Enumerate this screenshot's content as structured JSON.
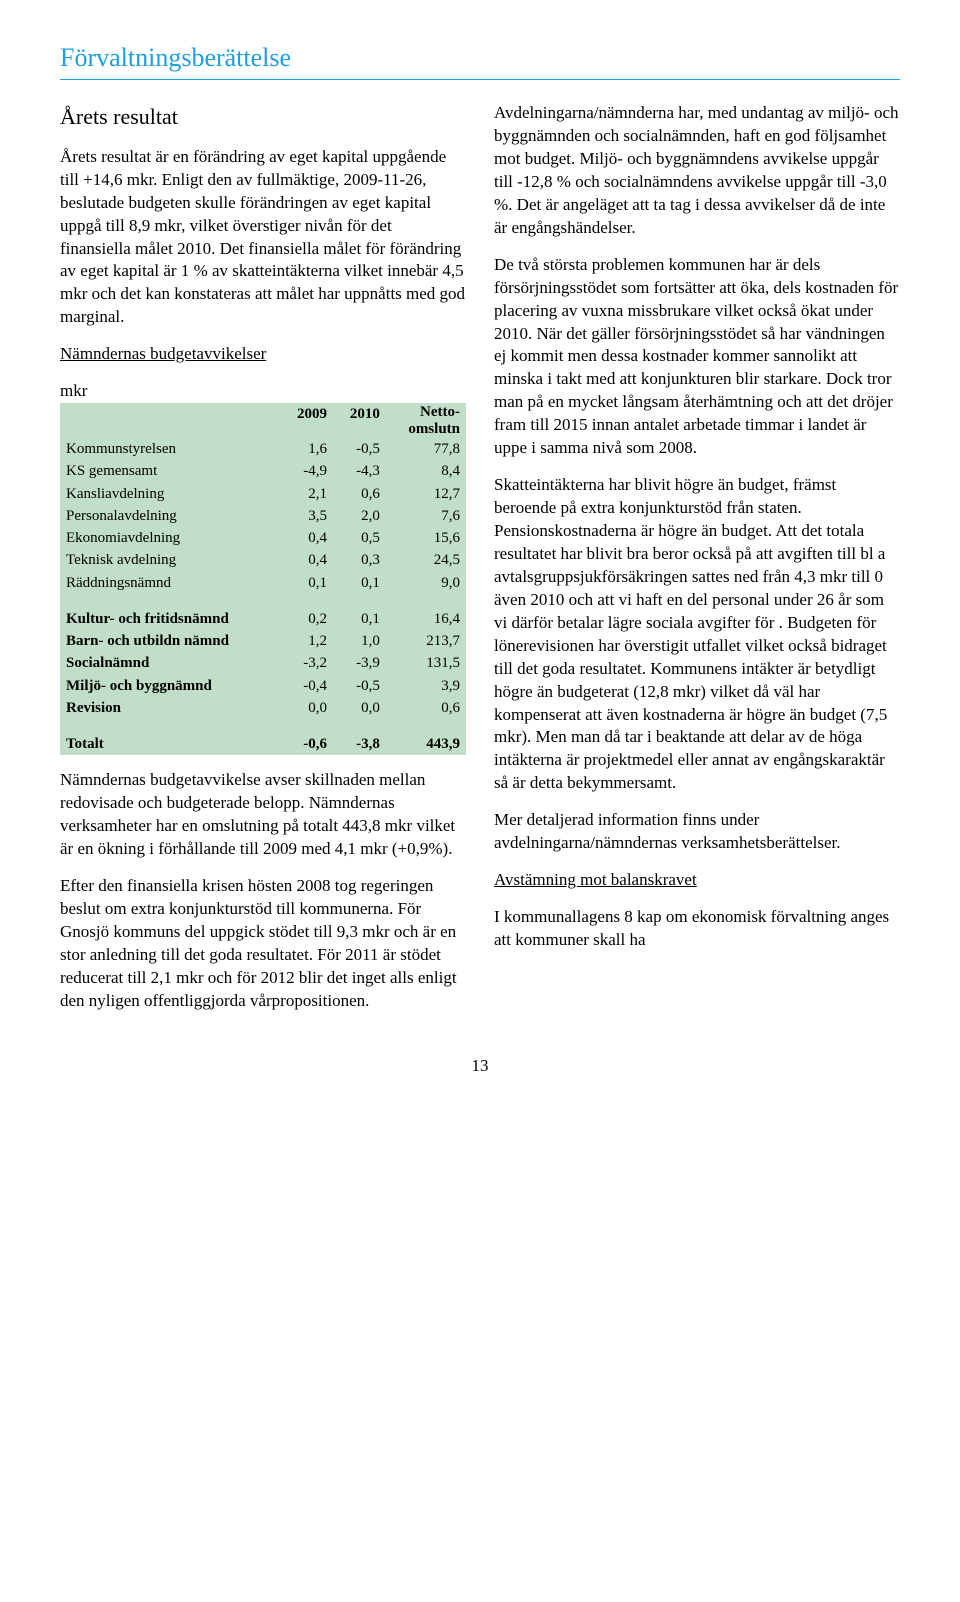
{
  "title": "Förvaltningsberättelse",
  "left": {
    "heading": "Årets resultat",
    "p1": "Årets resultat är en förändring av eget kapital uppgående till +14,6 mkr. Enligt den av fullmäktige, 2009-11-26, beslutade budgeten skulle förändringen av eget kapital uppgå till 8,9 mkr, vilket överstiger nivån för det finansiella målet 2010. Det finansiella målet för förändring av eget kapital är 1 % av skatteintäkterna vilket innebär 4,5 mkr och det kan konstateras att målet har uppnåtts med god marginal.",
    "subheading": "Nämndernas budgetavvikelser",
    "mkr": "mkr",
    "p2": "Nämndernas budgetavvikelse avser skillnaden mellan redovisade och budgeterade belopp. Nämndernas verksamheter har en omslutning på totalt 443,8 mkr vilket är en ökning i förhållande till 2009 med 4,1 mkr (+0,9%).",
    "p3": "Efter den finansiella krisen hösten 2008 tog regeringen beslut om extra konjunkturstöd till kommunerna. För Gnosjö kommuns del uppgick stödet till 9,3 mkr och är en stor anledning till det goda resultatet. För 2011 är stödet reducerat till 2,1 mkr och för 2012 blir det inget alls enligt den nyligen offentliggjorda vårpropositionen."
  },
  "table": {
    "headers": {
      "c0": "",
      "c1": "2009",
      "c2": "2010",
      "c3a": "Netto-",
      "c3b": "omslutn"
    },
    "rows": [
      {
        "label": "Kommunstyrelsen",
        "v1": "1,6",
        "v2": "-0,5",
        "v3": "77,8"
      },
      {
        "label": "KS gemensamt",
        "v1": "-4,9",
        "v2": "-4,3",
        "v3": "8,4"
      },
      {
        "label": "Kansliavdelning",
        "v1": "2,1",
        "v2": "0,6",
        "v3": "12,7"
      },
      {
        "label": "Personalavdelning",
        "v1": "3,5",
        "v2": "2,0",
        "v3": "7,6"
      },
      {
        "label": "Ekonomiavdelning",
        "v1": "0,4",
        "v2": "0,5",
        "v3": "15,6"
      },
      {
        "label": "Teknisk avdelning",
        "v1": "0,4",
        "v2": "0,3",
        "v3": "24,5"
      },
      {
        "label": "Räddningsnämnd",
        "v1": "0,1",
        "v2": "0,1",
        "v3": "9,0"
      }
    ],
    "rows2": [
      {
        "label": "Kultur- och fritidsnämnd",
        "v1": "0,2",
        "v2": "0,1",
        "v3": "16,4"
      },
      {
        "label": "Barn- och utbildn nämnd",
        "v1": "1,2",
        "v2": "1,0",
        "v3": "213,7"
      },
      {
        "label": "Socialnämnd",
        "v1": "-3,2",
        "v2": "-3,9",
        "v3": "131,5"
      },
      {
        "label": "Miljö- och byggnämnd",
        "v1": "-0,4",
        "v2": "-0,5",
        "v3": "3,9"
      },
      {
        "label": "Revision",
        "v1": "0,0",
        "v2": "0,0",
        "v3": "0,6"
      }
    ],
    "total": {
      "label": "Totalt",
      "v1": "-0,6",
      "v2": "-3,8",
      "v3": "443,9"
    },
    "styling": {
      "background": "#c1dec8",
      "fontsize": 15,
      "col_align": [
        "left",
        "right",
        "right",
        "right"
      ]
    }
  },
  "right": {
    "p1": "Avdelningarna/nämnderna har, med undantag av miljö- och byggnämnden och socialnämnden, haft en god följsamhet mot budget. Miljö- och byggnämndens avvikelse uppgår till -12,8 % och socialnämndens avvikelse uppgår till -3,0 %. Det är angeläget att ta tag i dessa avvikelser då de inte är engångshändelser.",
    "p2": "De två största problemen kommunen har är dels försörjningsstödet som fortsätter att öka, dels kostnaden för placering av vuxna missbrukare vilket också ökat under 2010. När det gäller försörjningsstödet så har vändningen ej kommit men dessa kostnader kommer sannolikt att minska i takt med att konjunkturen blir starkare. Dock tror man på en mycket långsam återhämtning och att det dröjer fram till 2015 innan antalet arbetade timmar i landet är uppe i samma nivå som 2008.",
    "p3": "Skatteintäkterna har blivit högre än budget, främst beroende på extra konjunkturstöd från staten. Pensionskostnaderna är högre än budget. Att det totala resultatet har blivit bra beror också på att avgiften till bl a avtalsgruppsjukförsäkringen sattes ned från 4,3 mkr till 0 även 2010 och att vi haft en del personal under 26 år som vi därför betalar lägre sociala avgifter för . Budgeten för lönerevisionen har överstigit utfallet vilket också bidraget till det goda resultatet. Kommunens intäkter är betydligt högre än budgeterat (12,8 mkr) vilket då väl har kompenserat att även kostnaderna är högre än budget (7,5 mkr). Men man då tar i beaktande att delar av de höga intäkterna är projektmedel eller annat av engångskaraktär så är detta bekymmersamt.",
    "p4": "Mer detaljerad information finns under avdelningarna/nämndernas verksamhetsberättelser.",
    "subheading": "Avstämning mot balanskravet",
    "p5": "I kommunallagens 8 kap om ekonomisk förvaltning anges att kommuner skall ha"
  },
  "pageNumber": "13"
}
